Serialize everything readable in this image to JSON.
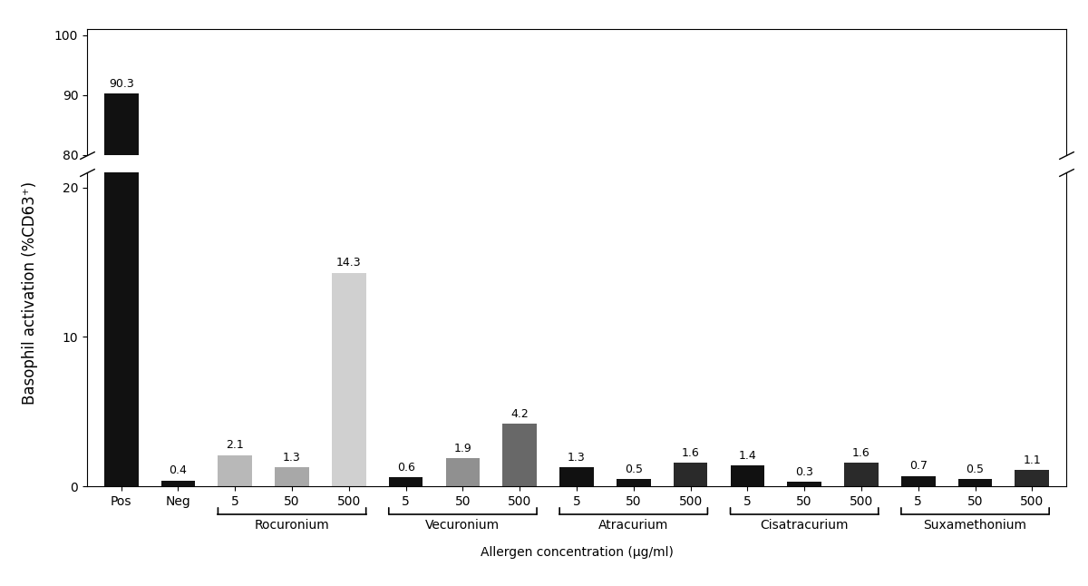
{
  "chart_data": {
    "type": "bar",
    "categories": [
      "Pos",
      "Neg",
      "5",
      "50",
      "500",
      "5",
      "50",
      "500",
      "5",
      "50",
      "500",
      "5",
      "50",
      "500",
      "5",
      "50",
      "500"
    ],
    "groups": [
      null,
      null,
      "Rocuronium",
      "Rocuronium",
      "Rocuronium",
      "Vecuronium",
      "Vecuronium",
      "Vecuronium",
      "Atracurium",
      "Atracurium",
      "Atracurium",
      "Cisatracurium",
      "Cisatracurium",
      "Cisatracurium",
      "Suxamethonium",
      "Suxamethonium",
      "Suxamethonium"
    ],
    "values": [
      90.3,
      0.4,
      2.1,
      1.3,
      14.3,
      0.6,
      1.9,
      4.2,
      1.3,
      0.5,
      1.6,
      1.4,
      0.3,
      1.6,
      0.7,
      0.5,
      1.1
    ],
    "colors": [
      "#111111",
      "#111111",
      "#b8b8b8",
      "#a8a8a8",
      "#d0d0d0",
      "#111111",
      "#909090",
      "#686868",
      "#111111",
      "#111111",
      "#2a2a2a",
      "#111111",
      "#111111",
      "#2a2a2a",
      "#111111",
      "#111111",
      "#2a2a2a"
    ],
    "ylim": [
      [
        0,
        21
      ],
      [
        80,
        101
      ]
    ],
    "yticks": [
      [
        0,
        10,
        20
      ],
      [
        80,
        90,
        100
      ]
    ],
    "data_labels": true,
    "xlabel": "Allergen concentration (μg/ml)",
    "ylabel": "Basophil activation (%CD63⁺)"
  }
}
